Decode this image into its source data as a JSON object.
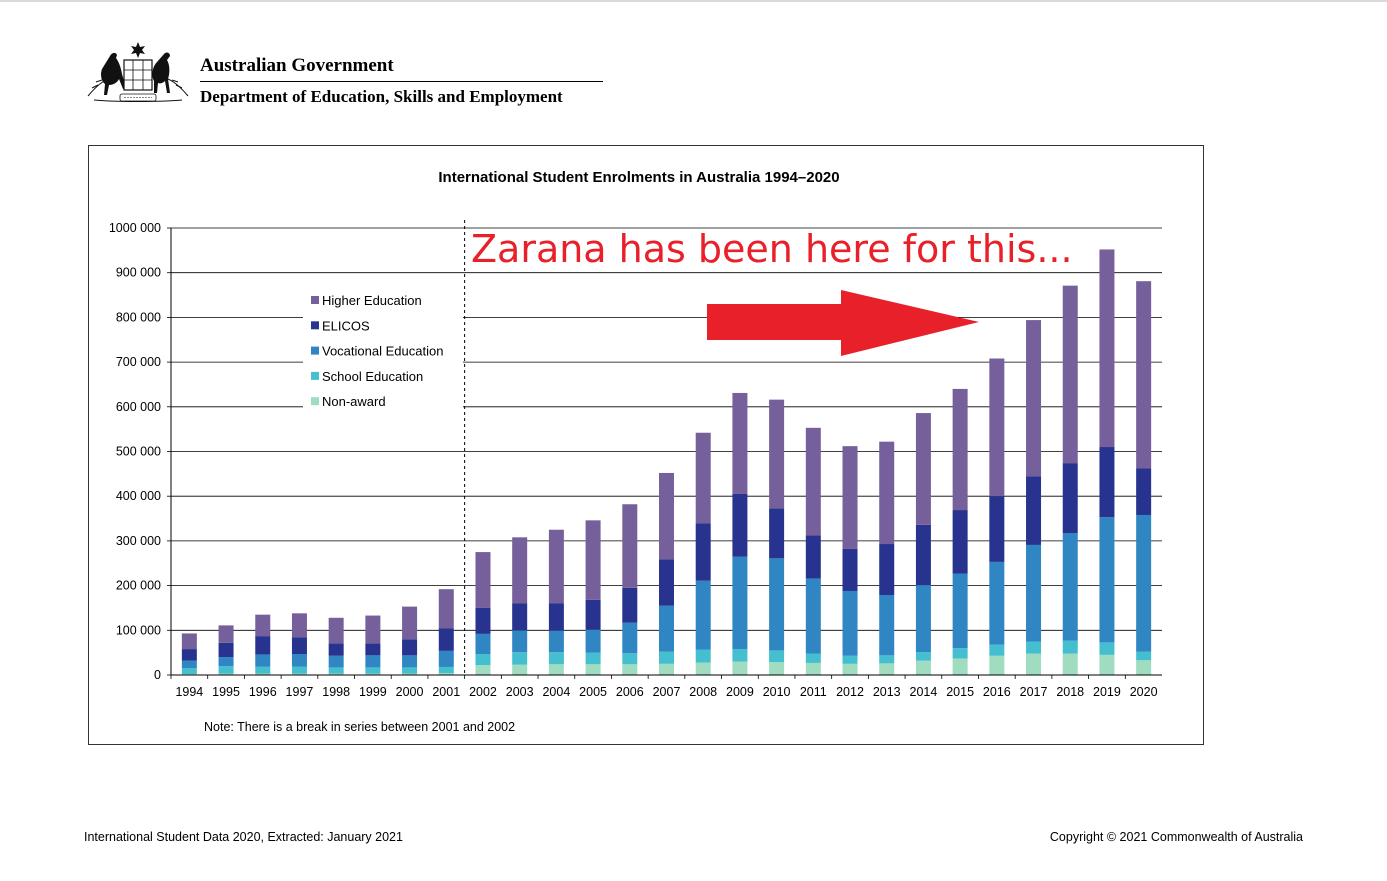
{
  "header": {
    "crest_icon": "commonwealth-coat-of-arms-icon",
    "title": "Australian Government",
    "department": "Department of Education, Skills and Employment"
  },
  "chart_data": {
    "type": "bar",
    "stacked": true,
    "title": "International Student Enrolments in Australia 1994–2020",
    "xlabel": "",
    "ylabel": "",
    "ylim": [
      0,
      1000000
    ],
    "yticks": [
      0,
      100000,
      200000,
      300000,
      400000,
      500000,
      600000,
      700000,
      800000,
      900000,
      1000000
    ],
    "ytick_labels": [
      "0",
      "100 000",
      "200 000",
      "300 000",
      "400 000",
      "500 000",
      "600 000",
      "700 000",
      "800 000",
      "900 000",
      "1000 000"
    ],
    "grid": true,
    "legend_position": "top-left",
    "categories": [
      "1994",
      "1995",
      "1996",
      "1997",
      "1998",
      "1999",
      "2000",
      "2001",
      "2002",
      "2003",
      "2004",
      "2005",
      "2006",
      "2007",
      "2008",
      "2009",
      "2010",
      "2011",
      "2012",
      "2013",
      "2014",
      "2015",
      "2016",
      "2017",
      "2018",
      "2019",
      "2020"
    ],
    "series": [
      {
        "name": "Non-award",
        "color": "#9fdcc0",
        "values": [
          2000,
          3000,
          3000,
          3000,
          3000,
          3000,
          3000,
          4000,
          22000,
          23000,
          24000,
          24000,
          24000,
          25000,
          28000,
          30000,
          29000,
          27000,
          25000,
          26000,
          32000,
          37000,
          43000,
          48000,
          48000,
          45000,
          33000
        ]
      },
      {
        "name": "School Education",
        "color": "#45bfd0",
        "values": [
          13000,
          17000,
          16000,
          16000,
          14000,
          14000,
          14000,
          14000,
          25000,
          28000,
          27000,
          26000,
          25000,
          27000,
          29000,
          28000,
          26000,
          21000,
          18000,
          18000,
          19000,
          23000,
          25000,
          27000,
          29000,
          28000,
          19000
        ]
      },
      {
        "name": "Vocational Education",
        "color": "#2f86c2",
        "values": [
          17000,
          20000,
          27000,
          28000,
          26000,
          27000,
          27000,
          36000,
          45000,
          49000,
          48000,
          51000,
          68000,
          103000,
          154000,
          207000,
          206000,
          168000,
          145000,
          135000,
          150000,
          167000,
          185000,
          216000,
          240000,
          280000,
          306000
        ]
      },
      {
        "name": "ELICOS",
        "color": "#27338f",
        "values": [
          26000,
          32000,
          41000,
          37000,
          28000,
          27000,
          36000,
          50000,
          58000,
          60000,
          61000,
          67000,
          78000,
          104000,
          128000,
          140000,
          112000,
          96000,
          94000,
          114000,
          135000,
          142000,
          147000,
          153000,
          157000,
          157000,
          104000
        ]
      },
      {
        "name": "Higher Education",
        "color": "#76609b",
        "values": [
          35000,
          39000,
          48000,
          54000,
          57000,
          62000,
          73000,
          88000,
          125000,
          148000,
          165000,
          178000,
          187000,
          193000,
          203000,
          226000,
          243000,
          241000,
          230000,
          229000,
          250000,
          271000,
          308000,
          350000,
          397000,
          442000,
          419000
        ]
      }
    ],
    "legend_order": [
      "Higher Education",
      "ELICOS",
      "Vocational Education",
      "School Education",
      "Non-award"
    ],
    "series_break_after": "2001",
    "note": "Note: There is a break in series between 2001 and 2002",
    "annotation": {
      "text": "Zarana has been here for this...",
      "arrow_color": "#e8202a",
      "arrow_direction": "right"
    }
  },
  "footer": {
    "left": "International Student Data 2020, Extracted: January 2021",
    "right": "Copyright © 2021 Commonwealth of Australia"
  }
}
